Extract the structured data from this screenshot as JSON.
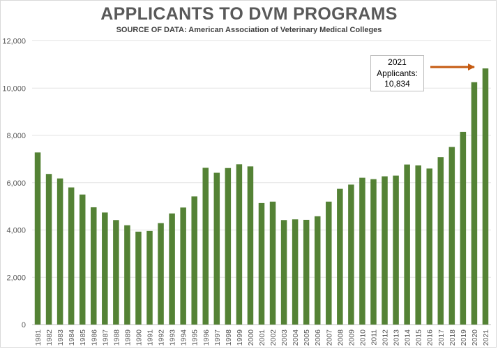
{
  "chart_data": {
    "type": "bar",
    "title": "APPLICANTS TO DVM PROGRAMS",
    "subtitle": "SOURCE OF DATA: American Association of Veterinary Medical Colleges",
    "xlabel": "",
    "ylabel": "",
    "ylim": [
      0,
      12000
    ],
    "yticks": [
      0,
      2000,
      4000,
      6000,
      8000,
      10000,
      12000
    ],
    "ytick_labels": [
      "0",
      "2,000",
      "4,000",
      "6,000",
      "8,000",
      "10,000",
      "12,000"
    ],
    "grid": true,
    "legend": "none",
    "bar_color": "#548235",
    "arrow_color": "#c55a11",
    "categories": [
      "1981",
      "1982",
      "1983",
      "1984",
      "1985",
      "1986",
      "1987",
      "1988",
      "1989",
      "1990",
      "1991",
      "1992",
      "1993",
      "1994",
      "1995",
      "1996",
      "1997",
      "1998",
      "1999",
      "2000",
      "2001",
      "2002",
      "2003",
      "2004",
      "2005",
      "2006",
      "2007",
      "2008",
      "2009",
      "2010",
      "2011",
      "2012",
      "2013",
      "2014",
      "2015",
      "2016",
      "2017",
      "2018",
      "2019",
      "2020",
      "2021"
    ],
    "values": [
      7280,
      6370,
      6180,
      5800,
      5500,
      4960,
      4740,
      4420,
      4200,
      3930,
      3960,
      4290,
      4700,
      4950,
      5420,
      6630,
      6420,
      6620,
      6780,
      6690,
      5140,
      5200,
      4420,
      4450,
      4430,
      4580,
      5200,
      5740,
      5920,
      6210,
      6150,
      6270,
      6300,
      6770,
      6730,
      6600,
      7080,
      7510,
      8150,
      10250,
      10834
    ],
    "annotation": {
      "line1": "2021",
      "line2": "Applicants:",
      "line3": "10,834"
    }
  }
}
